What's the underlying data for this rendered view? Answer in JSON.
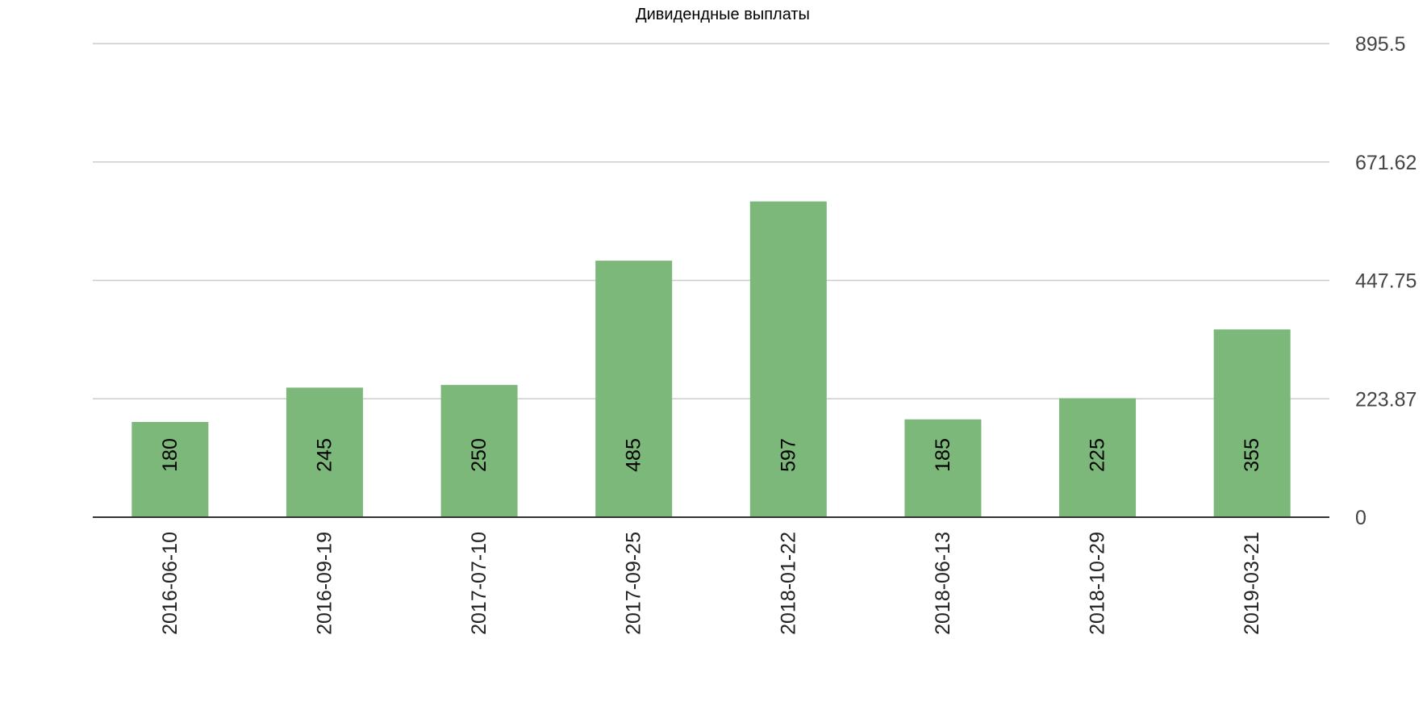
{
  "chart_data": {
    "type": "bar",
    "title": "Дивидендные выплаты",
    "xlabel": "",
    "ylabel": "",
    "categories": [
      "2016-06-10",
      "2016-09-19",
      "2017-07-10",
      "2017-09-25",
      "2018-01-22",
      "2018-06-13",
      "2018-10-29",
      "2019-03-21"
    ],
    "values": [
      180,
      245,
      250,
      485,
      597,
      185,
      225,
      355
    ],
    "data_labels": [
      "180",
      "245",
      "250",
      "485",
      "597",
      "185",
      "225",
      "355"
    ],
    "ylim": [
      0,
      895.5
    ],
    "y_ticks": [
      0,
      223.87,
      447.75,
      671.62,
      895.5
    ],
    "y_tick_labels": [
      "0",
      "223.87",
      "447.75",
      "671.62",
      "895.5"
    ],
    "y_axis_side": "right",
    "x_tick_rotation": "vertical",
    "grid": true,
    "legend": "none",
    "colors": {
      "bar": "#7cb87a",
      "grid": "#cccccc",
      "baseline": "#333333"
    }
  }
}
